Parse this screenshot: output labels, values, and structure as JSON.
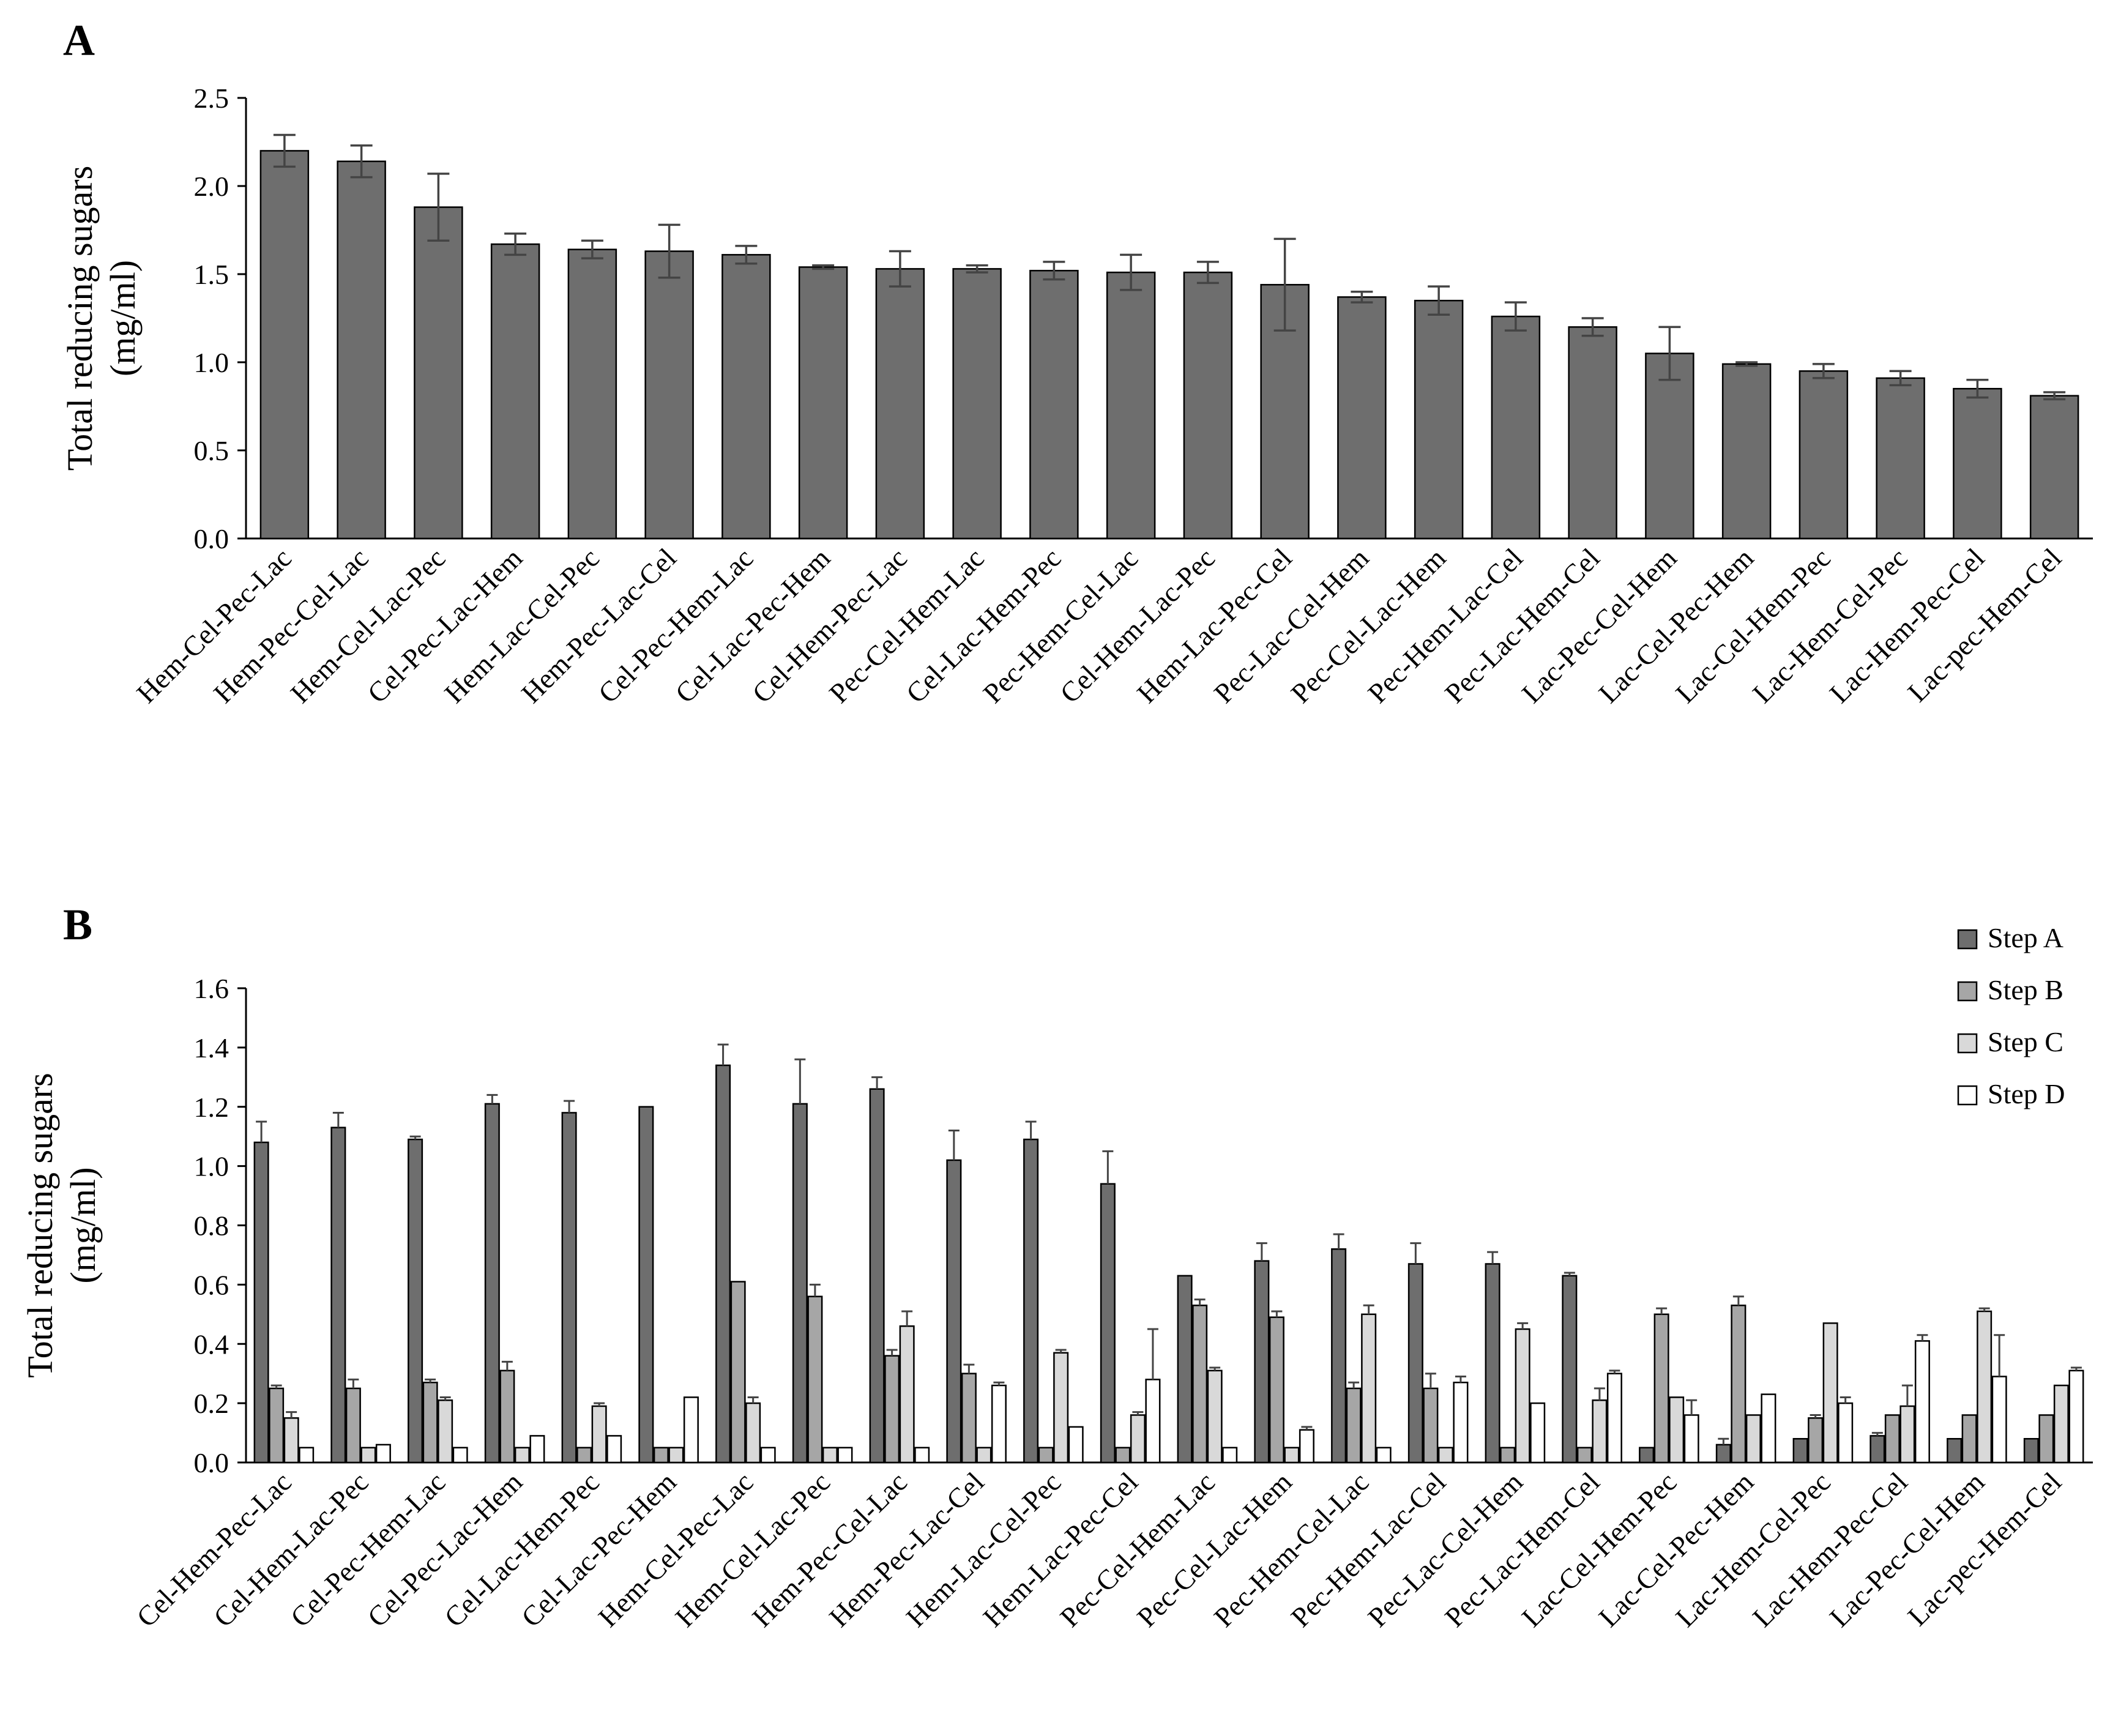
{
  "colors": {
    "step_a": "#6e6e6e",
    "step_b": "#a6a6a6",
    "step_c": "#d9d9d9",
    "step_d": "#ffffff",
    "outline": "#000000",
    "error_bar": "#444444"
  },
  "chart_data": [
    {
      "panel": "A",
      "type": "bar",
      "ylabel_lines": [
        "Total reducing sugars",
        "(mg/ml)"
      ],
      "ylim": [
        0,
        2.5
      ],
      "yticks": [
        "0.0",
        "0.5",
        "1.0",
        "1.5",
        "2.0",
        "2.5"
      ],
      "grid": false,
      "categories": [
        "Hem-Cel-Pec-Lac",
        "Hem-Pec-Cel-Lac",
        "Hem-Cel-Lac-Pec",
        "Cel-Pec-Lac-Hem",
        "Hem-Lac-Cel-Pec",
        "Hem-Pec-Lac-Cel",
        "Cel-Pec-Hem-Lac",
        "Cel-Lac-Pec-Hem",
        "Cel-Hem-Pec-Lac",
        "Pec-Cel-Hem-Lac",
        "Cel-Lac-Hem-Pec",
        "Pec-Hem-Cel-Lac",
        "Cel-Hem-Lac-Pec",
        "Hem-Lac-Pec-Cel",
        "Pec-Lac-Cel-Hem",
        "Pec-Cel-Lac-Hem",
        "Pec-Hem-Lac-Cel",
        "Pec-Lac-Hem-Cel",
        "Lac-Pec-Cel-Hem",
        "Lac-Cel-Pec-Hem",
        "Lac-Cel-Hem-Pec",
        "Lac-Hem-Cel-Pec",
        "Lac-Hem-Pec-Cel",
        "Lac-pec-Hem-Cel"
      ],
      "values": [
        2.2,
        2.14,
        1.88,
        1.67,
        1.64,
        1.63,
        1.61,
        1.54,
        1.53,
        1.53,
        1.52,
        1.51,
        1.51,
        1.44,
        1.37,
        1.35,
        1.26,
        1.2,
        1.05,
        0.99,
        0.95,
        0.91,
        0.85,
        0.81
      ],
      "errors": [
        0.09,
        0.09,
        0.19,
        0.06,
        0.05,
        0.15,
        0.05,
        0.01,
        0.1,
        0.02,
        0.05,
        0.1,
        0.06,
        0.26,
        0.03,
        0.08,
        0.08,
        0.05,
        0.15,
        0.01,
        0.04,
        0.04,
        0.05,
        0.02
      ]
    },
    {
      "panel": "B",
      "type": "bar",
      "ylabel_lines": [
        "Total reducing sugars",
        "(mg/ml)"
      ],
      "ylim": [
        0,
        1.6
      ],
      "yticks": [
        "0.0",
        "0.2",
        "0.4",
        "0.6",
        "0.8",
        "1.0",
        "1.2",
        "1.4",
        "1.6"
      ],
      "grid": false,
      "legend_position": "top-right",
      "categories": [
        "Cel-Hem-Pec-Lac",
        "Cel-Hem-Lac-Pec",
        "Cel-Pec-Hem-Lac",
        "Cel-Pec-Lac-Hem",
        "Cel-Lac-Hem-Pec",
        "Cel-Lac-Pec-Hem",
        "Hem-Cel-Pec-Lac",
        "Hem-Cel-Lac-Pec",
        "Hem-Pec-Cel-Lac",
        "Hem-Pec-Lac-Cel",
        "Hem-Lac-Cel-Pec",
        "Hem-Lac-Pec-Cel",
        "Pec-Cel-Hem-Lac",
        "Pec-Cel-Lac-Hem",
        "Pec-Hem-Cel-Lac",
        "Pec-Hem-Lac-Cel",
        "Pec-Lac-Cel-Hem",
        "Pec-Lac-Hem-Cel",
        "Lac-Cel-Hem-Pec",
        "Lac-Cel-Pec-Hem",
        "Lac-Hem-Cel-Pec",
        "Lac-Hem-Pec-Cel",
        "Lac-Pec-Cel-Hem",
        "Lac-pec-Hem-Cel"
      ],
      "series": [
        {
          "name": "Step A",
          "color_key": "step_a",
          "values": [
            1.08,
            1.13,
            1.09,
            1.21,
            1.18,
            1.2,
            1.34,
            1.21,
            1.26,
            1.02,
            1.09,
            0.94,
            0.63,
            0.68,
            0.72,
            0.67,
            0.67,
            0.63,
            0.05,
            0.06,
            0.08,
            0.09,
            0.08,
            0.08
          ],
          "errors": [
            0.07,
            0.05,
            0.01,
            0.03,
            0.04,
            0.0,
            0.07,
            0.15,
            0.04,
            0.1,
            0.06,
            0.11,
            0.0,
            0.06,
            0.05,
            0.07,
            0.04,
            0.01,
            0.0,
            0.02,
            0.0,
            0.01,
            0.0,
            0.0
          ]
        },
        {
          "name": "Step B",
          "color_key": "step_b",
          "values": [
            0.25,
            0.25,
            0.27,
            0.31,
            0.05,
            0.05,
            0.61,
            0.56,
            0.36,
            0.3,
            0.05,
            0.05,
            0.53,
            0.49,
            0.25,
            0.25,
            0.05,
            0.05,
            0.5,
            0.53,
            0.15,
            0.16,
            0.16,
            0.16
          ],
          "errors": [
            0.01,
            0.03,
            0.01,
            0.03,
            0.0,
            0.0,
            0.0,
            0.04,
            0.02,
            0.03,
            0.0,
            0.0,
            0.02,
            0.02,
            0.02,
            0.05,
            0.0,
            0.0,
            0.02,
            0.03,
            0.01,
            0.0,
            0.0,
            0.0
          ]
        },
        {
          "name": "Step C",
          "color_key": "step_c",
          "values": [
            0.15,
            0.05,
            0.21,
            0.05,
            0.19,
            0.05,
            0.2,
            0.05,
            0.46,
            0.05,
            0.37,
            0.16,
            0.31,
            0.05,
            0.5,
            0.05,
            0.45,
            0.21,
            0.22,
            0.16,
            0.47,
            0.19,
            0.51,
            0.26
          ],
          "errors": [
            0.02,
            0.0,
            0.01,
            0.0,
            0.01,
            0.0,
            0.02,
            0.0,
            0.05,
            0.0,
            0.01,
            0.01,
            0.01,
            0.0,
            0.03,
            0.0,
            0.02,
            0.04,
            0.0,
            0.0,
            0.0,
            0.07,
            0.01,
            0.0
          ]
        },
        {
          "name": "Step D",
          "color_key": "step_d",
          "values": [
            0.05,
            0.06,
            0.05,
            0.09,
            0.09,
            0.22,
            0.05,
            0.05,
            0.05,
            0.26,
            0.12,
            0.28,
            0.05,
            0.11,
            0.05,
            0.27,
            0.2,
            0.3,
            0.16,
            0.23,
            0.2,
            0.41,
            0.29,
            0.31
          ],
          "errors": [
            0.0,
            0.0,
            0.0,
            0.0,
            0.0,
            0.0,
            0.0,
            0.0,
            0.0,
            0.01,
            0.0,
            0.17,
            0.0,
            0.01,
            0.0,
            0.02,
            0.0,
            0.01,
            0.05,
            0.0,
            0.02,
            0.02,
            0.14,
            0.01
          ]
        }
      ]
    }
  ]
}
